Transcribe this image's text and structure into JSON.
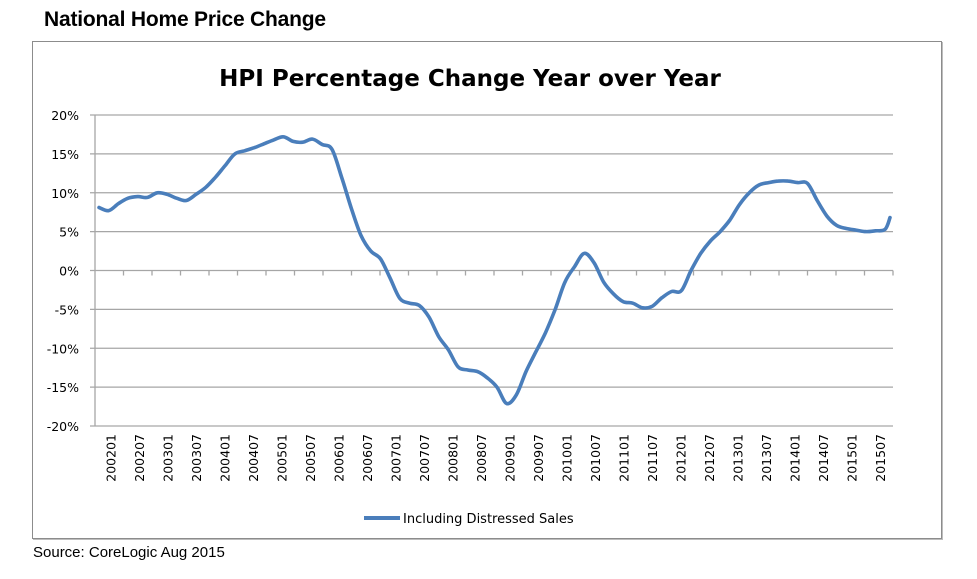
{
  "page": {
    "title": "National Home Price Change",
    "source": "Source: CoreLogic Aug 2015"
  },
  "chart_data": {
    "type": "line",
    "title": "HPI Percentage Change Year over Year",
    "xlabel": "",
    "ylabel": "",
    "ylim": [
      -20,
      20
    ],
    "yticks": [
      20,
      15,
      10,
      5,
      0,
      -5,
      -10,
      -15,
      -20
    ],
    "ytick_labels": [
      "20%",
      "15%",
      "10%",
      "5%",
      "0%",
      "-5%",
      "-10%",
      "-15%",
      "-20%"
    ],
    "xtick_labels": [
      "200201",
      "200207",
      "200301",
      "200307",
      "200401",
      "200407",
      "200501",
      "200507",
      "200601",
      "200607",
      "200701",
      "200707",
      "200801",
      "200807",
      "200901",
      "200907",
      "201001",
      "201007",
      "201101",
      "201107",
      "201201",
      "201207",
      "201301",
      "201307",
      "201401",
      "201407",
      "201501",
      "201507"
    ],
    "x_start": "200201",
    "x_end": "201508",
    "grid": true,
    "legend": {
      "position": "bottom",
      "entries": [
        "Including Distressed Sales"
      ]
    },
    "series": [
      {
        "name": "Including Distressed Sales",
        "color": "#4a7ebb",
        "x": [
          "200201",
          "200203",
          "200205",
          "200207",
          "200209",
          "200211",
          "200301",
          "200303",
          "200305",
          "200307",
          "200309",
          "200311",
          "200401",
          "200403",
          "200405",
          "200407",
          "200409",
          "200411",
          "200501",
          "200503",
          "200505",
          "200507",
          "200509",
          "200511",
          "200601",
          "200603",
          "200605",
          "200607",
          "200609",
          "200611",
          "200701",
          "200703",
          "200705",
          "200707",
          "200709",
          "200711",
          "200801",
          "200803",
          "200805",
          "200807",
          "200809",
          "200811",
          "200901",
          "200903",
          "200905",
          "200907",
          "200909",
          "200911",
          "201001",
          "201003",
          "201005",
          "201007",
          "201009",
          "201011",
          "201101",
          "201103",
          "201105",
          "201107",
          "201109",
          "201111",
          "201201",
          "201203",
          "201205",
          "201207",
          "201209",
          "201211",
          "201301",
          "201303",
          "201305",
          "201307",
          "201309",
          "201311",
          "201401",
          "201403",
          "201405",
          "201407",
          "201409",
          "201411",
          "201501",
          "201503",
          "201505",
          "201507",
          "201508"
        ],
        "values": [
          8.1,
          7.7,
          8.6,
          9.3,
          9.5,
          9.4,
          10.0,
          9.8,
          9.3,
          9.0,
          9.8,
          10.7,
          12.0,
          13.5,
          15.0,
          15.4,
          15.8,
          16.3,
          16.8,
          17.2,
          16.6,
          16.5,
          16.9,
          16.2,
          15.6,
          12.0,
          8.0,
          4.5,
          2.5,
          1.5,
          -1.0,
          -3.6,
          -4.2,
          -4.5,
          -6.0,
          -8.5,
          -10.2,
          -12.4,
          -12.8,
          -13.0,
          -13.8,
          -15.0,
          -17.1,
          -16.0,
          -13.0,
          -10.5,
          -8.0,
          -5.0,
          -1.5,
          0.5,
          2.2,
          1.0,
          -1.5,
          -3.0,
          -4.0,
          -4.2,
          -4.8,
          -4.6,
          -3.5,
          -2.7,
          -2.6,
          0.0,
          2.2,
          3.8,
          5.0,
          6.5,
          8.5,
          10.0,
          11.0,
          11.3,
          11.5,
          11.5,
          11.3,
          11.2,
          9.0,
          7.0,
          5.8,
          5.4,
          5.2,
          5.0,
          5.1,
          5.3,
          6.8
        ]
      }
    ]
  }
}
